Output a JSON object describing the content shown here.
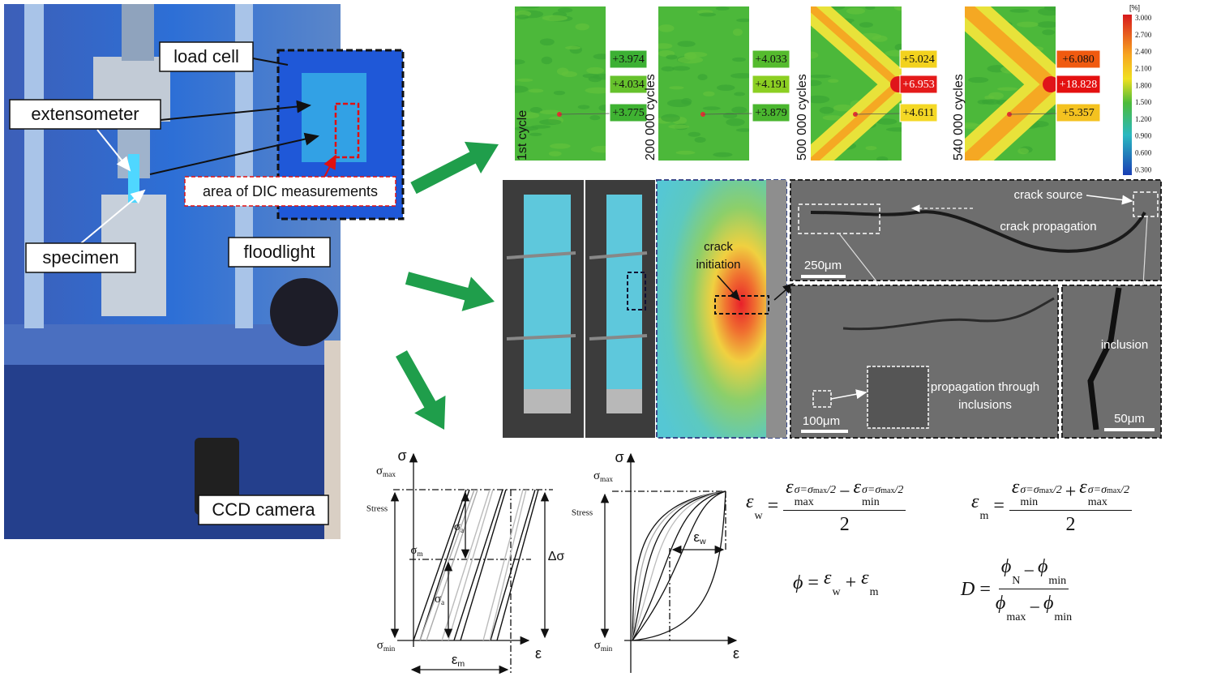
{
  "photo": {
    "load_cell": "load cell",
    "extensometer": "extensometer",
    "specimen": "specimen",
    "floodlight": "floodlight",
    "ccd_camera": "CCD camera",
    "dic_area": "area of DIC measurements"
  },
  "strain_maps": [
    {
      "label": "1st cycle",
      "values": [
        "+3.974",
        "+4.034",
        "+3.775"
      ]
    },
    {
      "label": "200 000 cycles",
      "values": [
        "+4.033",
        "+4.191",
        "+3.879"
      ]
    },
    {
      "label": "500 000 cycles",
      "values": [
        "+5.024",
        "+6.953",
        "+4.611"
      ]
    },
    {
      "label": "540 000 cycles",
      "values": [
        "+6.080",
        "+18.828",
        "+5.357"
      ]
    }
  ],
  "colorbar": {
    "unit": "[%]",
    "ticks": [
      "3.000",
      "2.700",
      "2.400",
      "2.100",
      "1.800",
      "1.500",
      "1.200",
      "0.900",
      "0.600",
      "0.300"
    ]
  },
  "micrographs": {
    "crack_initiation": "crack initiation",
    "crack_source": "crack source",
    "crack_propagation": "crack propagation",
    "scale_1": "250μm",
    "propagation": "propagation through inclusions",
    "scale_2": "100μm",
    "inclusion": "inclusion",
    "scale_3": "50μm"
  },
  "graph_1": {
    "y_axis": "σ",
    "max": {
      "base": "σ",
      "sub": "max"
    },
    "stress": "Stress",
    "mean": {
      "base": "σ",
      "sub": "m"
    },
    "amplitude_upper": {
      "base": "σ",
      "sub": "a"
    },
    "amplitude_lower": {
      "base": "σ",
      "sub": "a"
    },
    "range": "Δσ",
    "min": {
      "base": "σ",
      "sub": "min"
    },
    "x_axis": "ε",
    "strain_mean": {
      "base": "ε",
      "sub": "m"
    }
  },
  "graph_2": {
    "y_axis": "σ",
    "max": {
      "base": "σ",
      "sub": "max"
    },
    "stress": "Stress",
    "strain_width": {
      "base": "ε",
      "sub": "w"
    },
    "min": {
      "base": "σ",
      "sub": "min"
    },
    "x_axis": "ε"
  },
  "formulas": [
    {
      "lhs": [
        {
          "base": "ε",
          "sub": "w"
        }
      ],
      "eq": "=",
      "num": [
        {
          "base": "ε",
          "sub": "max",
          "sup": {
            "pre": "σ=σ",
            "sub": "max",
            "post": "/2"
          }
        },
        "−",
        {
          "base": "ε",
          "sub": "min",
          "sup": {
            "pre": "σ=σ",
            "sub": "max",
            "post": "/2"
          }
        }
      ],
      "den": [
        "2"
      ]
    },
    {
      "lhs": [
        {
          "base": "ε",
          "sub": "m"
        }
      ],
      "eq": "=",
      "num": [
        {
          "base": "ε",
          "sub": "min",
          "sup": {
            "pre": "σ=σ",
            "sub": "max",
            "post": "/2"
          }
        },
        "+",
        {
          "base": "ε",
          "sub": "max",
          "sup": {
            "pre": "σ=σ",
            "sub": "max",
            "post": "/2"
          }
        }
      ],
      "den": [
        "2"
      ]
    },
    {
      "lhs": [
        "ϕ"
      ],
      "eq": "=",
      "rhs": [
        {
          "base": "ε",
          "sub": "w"
        },
        "+",
        {
          "base": "ε",
          "sub": "m"
        }
      ]
    },
    {
      "lhs": [
        "D"
      ],
      "eq": "=",
      "num": [
        {
          "base": "ϕ",
          "sub": "N"
        },
        "−",
        {
          "base": "ϕ",
          "sub": "min"
        }
      ],
      "den": [
        {
          "base": "ϕ",
          "sub": "max"
        },
        "−",
        {
          "base": "ϕ",
          "sub": "min"
        }
      ]
    }
  ]
}
